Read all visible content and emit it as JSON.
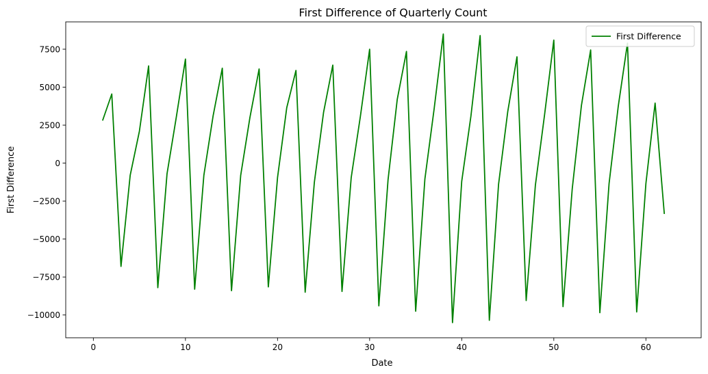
{
  "chart_data": {
    "type": "line",
    "title": "First Difference of Quarterly Count",
    "xlabel": "Date",
    "ylabel": "First Difference",
    "xlim": [
      -3,
      66
    ],
    "ylim": [
      -11500,
      9300
    ],
    "xticks": [
      0,
      10,
      20,
      30,
      40,
      50,
      60
    ],
    "yticks": [
      -10000,
      -7500,
      -5000,
      -2500,
      0,
      2500,
      5000,
      7500
    ],
    "xtick_labels": [
      "0",
      "10",
      "20",
      "30",
      "40",
      "50",
      "60"
    ],
    "ytick_labels": [
      "−10000",
      "−7500",
      "−5000",
      "−2500",
      "0",
      "2500",
      "5000",
      "7500"
    ],
    "grid": false,
    "legend_position": "top-right",
    "series": [
      {
        "name": "First Difference",
        "color": "#008000",
        "x": [
          1,
          2,
          3,
          4,
          5,
          6,
          7,
          8,
          9,
          10,
          11,
          12,
          13,
          14,
          15,
          16,
          17,
          18,
          19,
          20,
          21,
          22,
          23,
          24,
          25,
          26,
          27,
          28,
          29,
          30,
          31,
          32,
          33,
          34,
          35,
          36,
          37,
          38,
          39,
          40,
          41,
          42,
          43,
          44,
          45,
          46,
          47,
          48,
          49,
          50,
          51,
          52,
          53,
          54,
          55,
          56,
          57,
          58,
          59,
          60,
          61,
          62
        ],
        "values": [
          2800,
          4550,
          -6800,
          -800,
          2100,
          6400,
          -8200,
          -700,
          3000,
          6850,
          -8300,
          -800,
          3100,
          6250,
          -8400,
          -800,
          3000,
          6200,
          -8150,
          -950,
          3650,
          6100,
          -8500,
          -1250,
          3350,
          6450,
          -8450,
          -950,
          3100,
          7500,
          -9400,
          -1100,
          4200,
          7350,
          -9750,
          -1050,
          3550,
          8500,
          -10500,
          -1200,
          3100,
          8400,
          -10350,
          -1400,
          3400,
          7000,
          -9050,
          -1450,
          3200,
          8100,
          -9450,
          -1700,
          3800,
          7450,
          -9850,
          -1350,
          3750,
          7900,
          -9800,
          -1350,
          3950,
          -3350
        ]
      }
    ]
  }
}
